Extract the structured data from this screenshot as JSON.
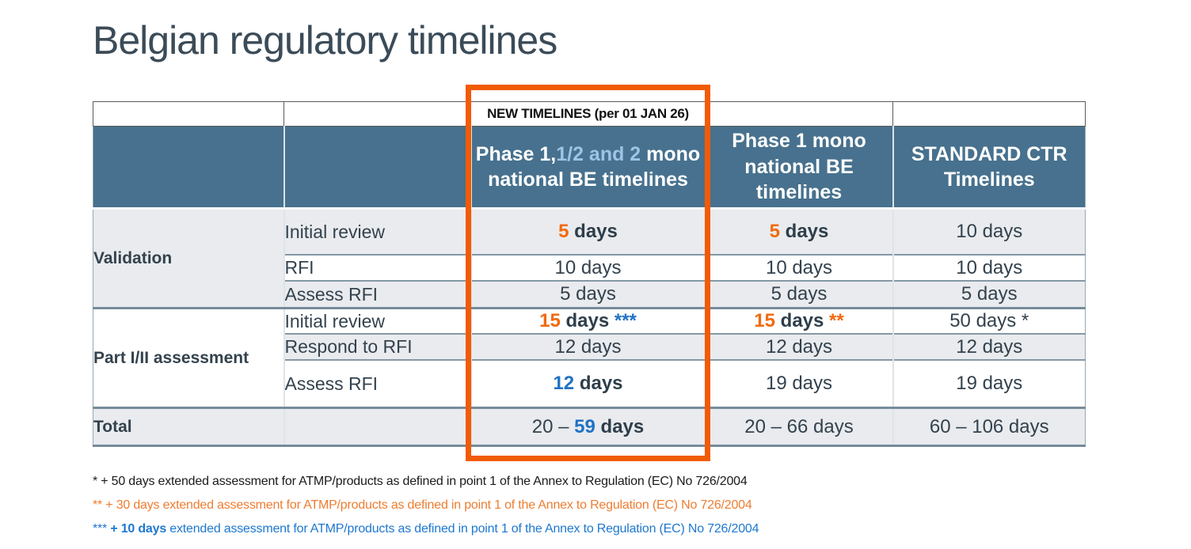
{
  "title": "Belgian regulatory timelines",
  "colors": {
    "header_bg": "#47718E",
    "header_text": "#FFFFFF",
    "header_light_blue": "#9DC3E6",
    "accent_orange": "#F26A0D",
    "accent_blue": "#1F72C4",
    "row_alt_gray": "#E9EBEE",
    "highlight_border_orange": "#F25B05",
    "footnote_orange": "#ED7D31",
    "footnote_blue": "#1E78CE",
    "dark_text": "#33424E"
  },
  "table": {
    "banner": "NEW TIMELINES (per 01 JAN 26)",
    "headers": {
      "phase12": [
        {
          "t": "Phase 1,",
          "s": "w"
        },
        {
          "t": "1/2 and 2",
          "s": "lb"
        },
        {
          "t": " mono national BE timelines",
          "s": "w"
        }
      ],
      "phase1": "Phase 1 mono national BE timelines",
      "standard": "STANDARD CTR Timelines"
    },
    "groups": {
      "validation": "Validation",
      "part": "Part I/II assessment",
      "total": "Total"
    },
    "rows": {
      "v_initial": {
        "label": "Initial review",
        "c1": [
          {
            "t": "5",
            "s": "o"
          },
          {
            "t": " days",
            "s": "b"
          }
        ],
        "c2": [
          {
            "t": "5",
            "s": "o"
          },
          {
            "t": " days",
            "s": "b"
          }
        ],
        "c3": [
          {
            "t": "10 days",
            "s": "n"
          }
        ]
      },
      "v_rfi": {
        "label": "RFI",
        "c1": [
          {
            "t": "10 days",
            "s": "n"
          }
        ],
        "c2": [
          {
            "t": "10 days",
            "s": "n"
          }
        ],
        "c3": [
          {
            "t": "10 days",
            "s": "n"
          }
        ]
      },
      "v_assess": {
        "label": "Assess RFI",
        "c1": [
          {
            "t": "5 days",
            "s": "n"
          }
        ],
        "c2": [
          {
            "t": "5 days",
            "s": "n"
          }
        ],
        "c3": [
          {
            "t": "5 days",
            "s": "n"
          }
        ]
      },
      "p_initial": {
        "label": "Initial review",
        "c1": [
          {
            "t": "15",
            "s": "o"
          },
          {
            "t": " days ",
            "s": "b"
          },
          {
            "t": "***",
            "s": "u"
          }
        ],
        "c2": [
          {
            "t": "15",
            "s": "o"
          },
          {
            "t": " days ",
            "s": "b"
          },
          {
            "t": "**",
            "s": "o"
          }
        ],
        "c3": [
          {
            "t": "50 days *",
            "s": "n"
          }
        ]
      },
      "p_respond": {
        "label": "Respond to RFI",
        "c1": [
          {
            "t": "12 days",
            "s": "n"
          }
        ],
        "c2": [
          {
            "t": "12 days",
            "s": "n"
          }
        ],
        "c3": [
          {
            "t": "12 days",
            "s": "n"
          }
        ]
      },
      "p_assess": {
        "label": "Assess RFI",
        "c1": [
          {
            "t": "12",
            "s": "u"
          },
          {
            "t": " days",
            "s": "b"
          }
        ],
        "c2": [
          {
            "t": "19 days",
            "s": "n"
          }
        ],
        "c3": [
          {
            "t": "19 days",
            "s": "n"
          }
        ]
      },
      "total": {
        "c1": [
          {
            "t": "20 – ",
            "s": "n"
          },
          {
            "t": "59",
            "s": "u"
          },
          {
            "t": " days",
            "s": "b"
          }
        ],
        "c2": [
          {
            "t": "20 – 66 days",
            "s": "n"
          }
        ],
        "c3": [
          {
            "t": "60 – 106 days",
            "s": "n"
          }
        ]
      }
    }
  },
  "footnotes": {
    "f1": [
      {
        "t": "* + 50 days extended assessment for ATMP/products as defined in point 1 of the Annex to Regulation (EC) No 726/2004",
        "s": "n"
      }
    ],
    "f2": [
      {
        "t": "** + 30 days extended assessment for ATMP/products as defined in point 1 of the Annex to Regulation (EC) No 726/2004",
        "s": "n"
      }
    ],
    "f3": [
      {
        "t": "*** ",
        "s": "n"
      },
      {
        "t": "+ 10 days",
        "s": "fb"
      },
      {
        "t": " extended assessment for ATMP/products as defined in point 1 of the Annex to Regulation (EC) No 726/2004",
        "s": "n"
      }
    ]
  }
}
